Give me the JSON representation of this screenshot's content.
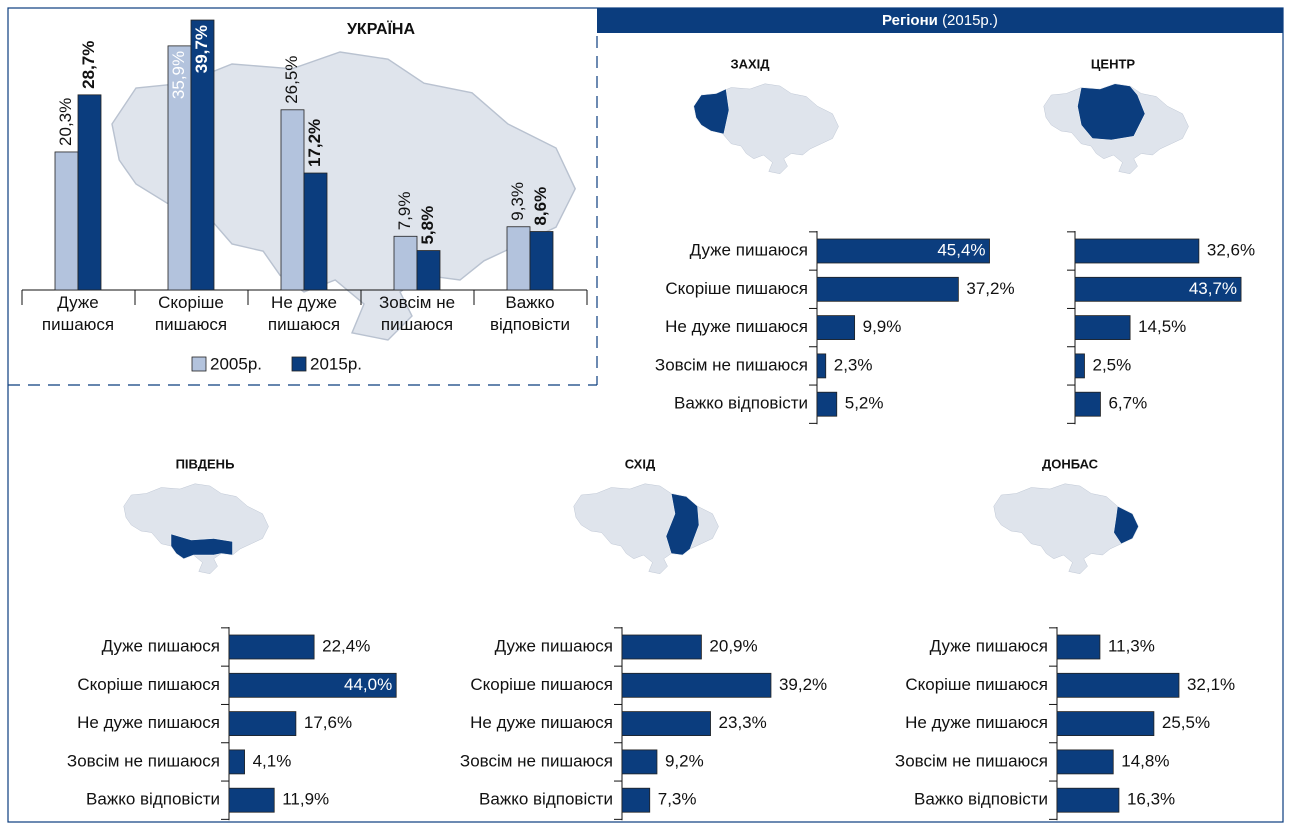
{
  "header": {
    "title": "Регіони",
    "subtitle": "(2015р.)"
  },
  "chart_data": [
    {
      "type": "grouped-bar",
      "title": "УКРАЇНА",
      "categories": [
        "Дуже пишаюся",
        "Скоріше пишаюся",
        "Не дуже пишаюся",
        "Зовсім не пишаюся",
        "Важко відповісти"
      ],
      "series": [
        {
          "name": "2005р.",
          "color": "#b3c3dd",
          "values": [
            20.3,
            35.9,
            26.5,
            7.9,
            9.3
          ],
          "value_labels": [
            "20,3%",
            "35,9%",
            "26,5%",
            "7,9%",
            "9,3%"
          ]
        },
        {
          "name": "2015р.",
          "color": "#0b3d7e",
          "values": [
            28.7,
            39.7,
            17.2,
            5.8,
            8.6
          ],
          "value_labels": [
            "28,7%",
            "39,7%",
            "17,2%",
            "5,8%",
            "8,6%"
          ]
        }
      ]
    },
    {
      "type": "hbar",
      "title": "ЗАХІД",
      "color": "#0b3d7e",
      "categories": [
        "Дуже пишаюся",
        "Скоріше пишаюся",
        "Не дуже пишаюся",
        "Зовсім не пишаюся",
        "Важко відповісти"
      ],
      "values": [
        45.4,
        37.2,
        9.9,
        2.3,
        5.2
      ],
      "value_labels": [
        "45,4%",
        "37,2%",
        "9,9%",
        "2,3%",
        "5,2%"
      ]
    },
    {
      "type": "hbar",
      "title": "ЦЕНТР",
      "color": "#0b3d7e",
      "values": [
        32.6,
        43.7,
        14.5,
        2.5,
        6.7
      ],
      "value_labels": [
        "32,6%",
        "43,7%",
        "14,5%",
        "2,5%",
        "6,7%"
      ]
    },
    {
      "type": "hbar",
      "title": "ПІВДЕНЬ",
      "color": "#0b3d7e",
      "categories": [
        "Дуже пишаюся",
        "Скоріше пишаюся",
        "Не дуже пишаюся",
        "Зовсім не пишаюся",
        "Важко відповісти"
      ],
      "values": [
        22.4,
        44.0,
        17.6,
        4.1,
        11.9
      ],
      "value_labels": [
        "22,4%",
        "44,0%",
        "17,6%",
        "4,1%",
        "11,9%"
      ]
    },
    {
      "type": "hbar",
      "title": "СХІД",
      "color": "#0b3d7e",
      "categories": [
        "Дуже пишаюся",
        "Скоріше пишаюся",
        "Не дуже пишаюся",
        "Зовсім не пишаюся",
        "Важко відповісти"
      ],
      "values": [
        20.9,
        39.2,
        23.3,
        9.2,
        7.3
      ],
      "value_labels": [
        "20,9%",
        "39,2%",
        "23,3%",
        "9,2%",
        "7,3%"
      ]
    },
    {
      "type": "hbar",
      "title": "ДОНБАС",
      "color": "#0b3d7e",
      "categories": [
        "Дуже пишаюся",
        "Скоріше пишаюся",
        "Не дуже пишаюся",
        "Зовсім не пишаюся",
        "Важко відповісти"
      ],
      "values": [
        11.3,
        32.1,
        25.5,
        14.8,
        16.3
      ],
      "value_labels": [
        "11,3%",
        "32,1%",
        "25,5%",
        "14,8%",
        "16,3%"
      ]
    }
  ]
}
